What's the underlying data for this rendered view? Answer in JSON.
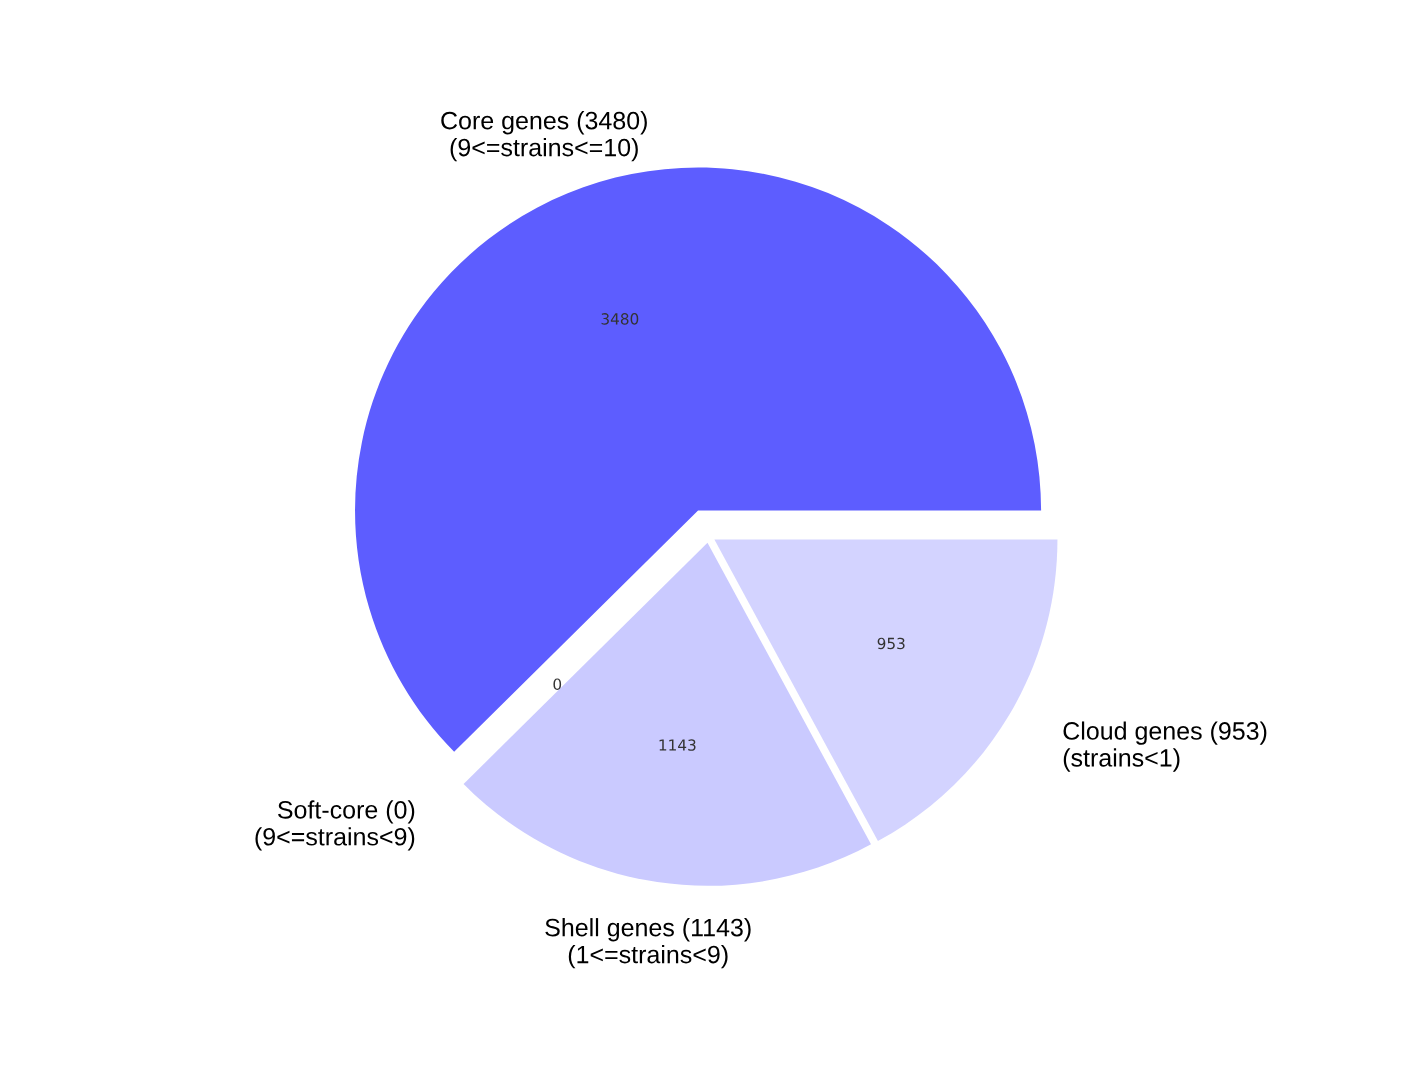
{
  "chart_data": {
    "type": "pie",
    "categories": [
      "Core genes (3480)\n(9<=strains<=10)",
      "Soft-core (0)\n(9<=strains<9)",
      "Shell genes (1143)\n(1<=strains<9)",
      "Cloud genes (953)\n(strains<1)"
    ],
    "values": [
      3480,
      0,
      1143,
      953
    ],
    "colors": [
      "#5d5dff",
      "#7f7fff",
      "#cacaff",
      "#d3d3ff"
    ],
    "value_labels": [
      "3480",
      "0",
      "1143",
      "953"
    ]
  }
}
